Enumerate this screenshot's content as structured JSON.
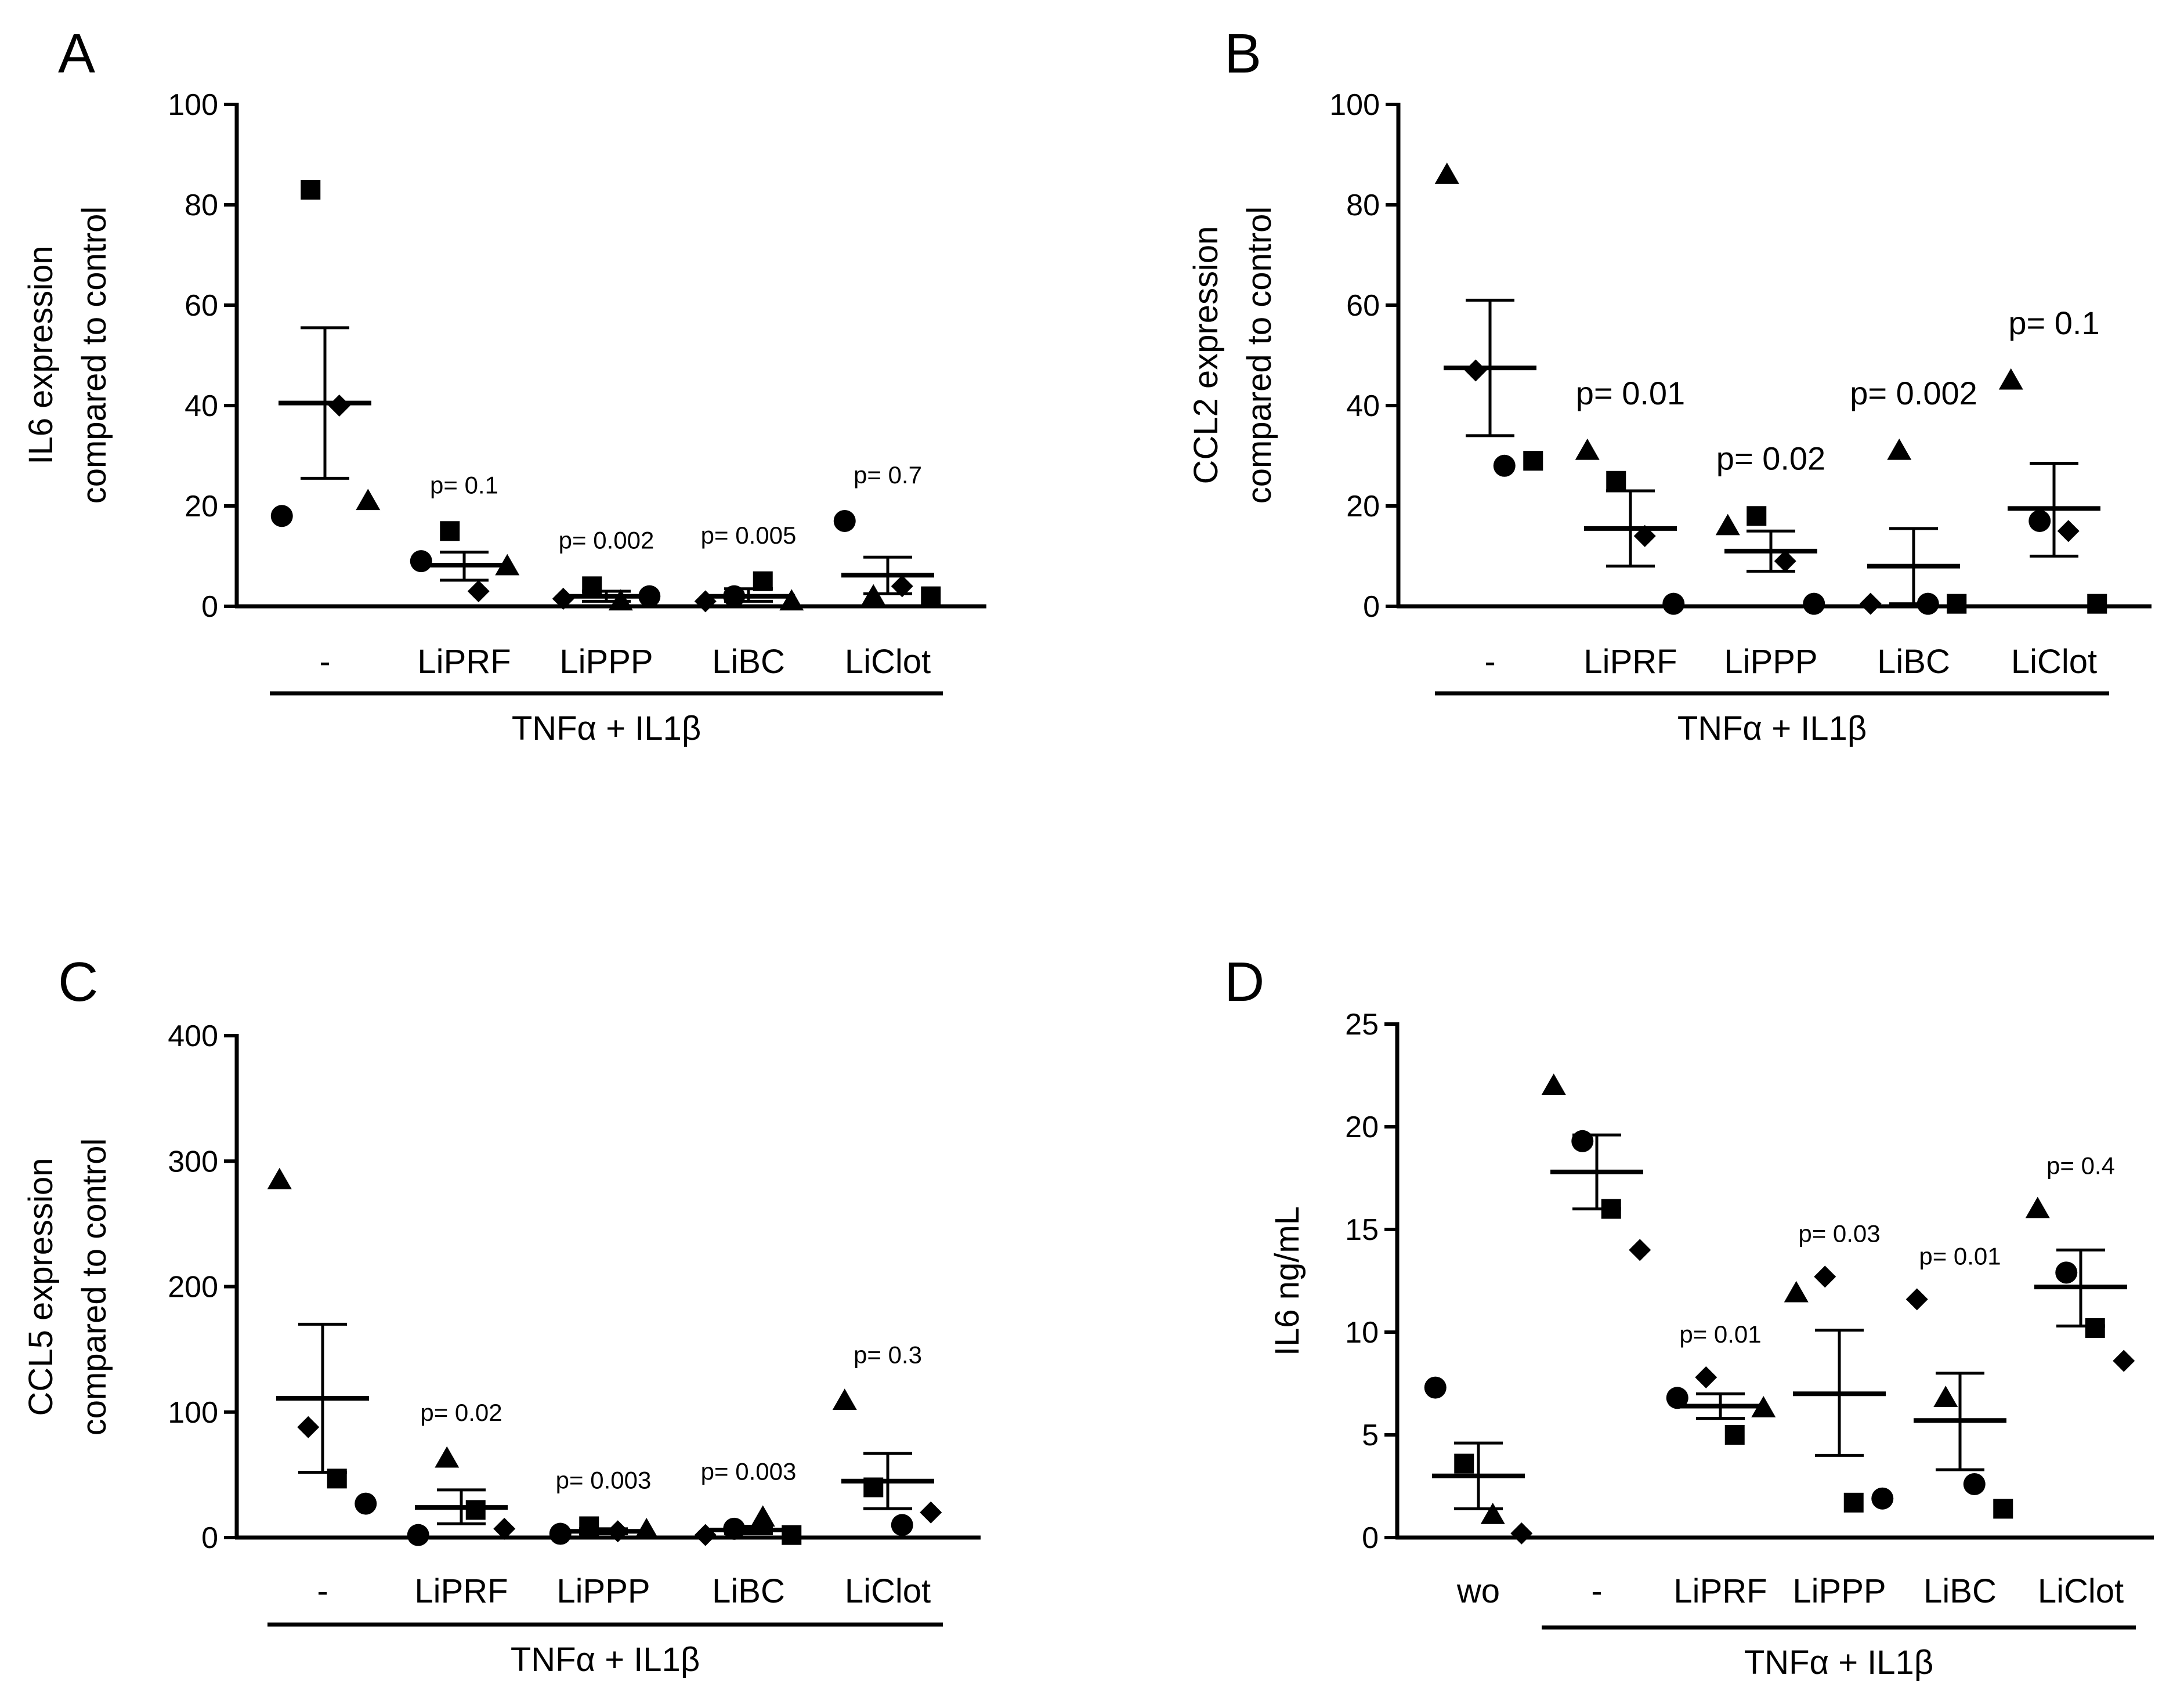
{
  "chart_data": [
    {
      "panel": "A",
      "type": "scatter",
      "ylabel": [
        "IL6 expression",
        "compared to control"
      ],
      "ylim": [
        0,
        100
      ],
      "yticks": [
        0,
        20,
        40,
        60,
        80,
        100
      ],
      "categories": [
        "-",
        "LiPRF",
        "LiPPP",
        "LiBC",
        "LiClot"
      ],
      "group_label": "TNFα + IL1β",
      "group_span": [
        "-",
        "LiClot"
      ],
      "p_font": "small",
      "groups": [
        {
          "category": "-",
          "mean": 40.5,
          "sem_low": 25.5,
          "sem_high": 55.5,
          "p": "",
          "points": [
            {
              "shape": "circle",
              "value": 18
            },
            {
              "shape": "square",
              "value": 83
            },
            {
              "shape": "diamond",
              "value": 40
            },
            {
              "shape": "triangle",
              "value": 21
            }
          ]
        },
        {
          "category": "LiPRF",
          "mean": 8.2,
          "sem_low": 5.2,
          "sem_high": 10.8,
          "p": "p= 0.1",
          "points": [
            {
              "shape": "circle",
              "value": 9
            },
            {
              "shape": "square",
              "value": 15
            },
            {
              "shape": "diamond",
              "value": 3
            },
            {
              "shape": "triangle",
              "value": 8
            }
          ]
        },
        {
          "category": "LiPPP",
          "mean": 2,
          "sem_low": 1,
          "sem_high": 3,
          "p": "p= 0.002",
          "points": [
            {
              "shape": "diamond",
              "value": 1.5
            },
            {
              "shape": "square",
              "value": 4
            },
            {
              "shape": "triangle",
              "value": 1
            },
            {
              "shape": "circle",
              "value": 2
            }
          ]
        },
        {
          "category": "LiBC",
          "mean": 2,
          "sem_low": 1,
          "sem_high": 3.5,
          "p": "p= 0.005",
          "points": [
            {
              "shape": "diamond",
              "value": 1
            },
            {
              "shape": "circle",
              "value": 2
            },
            {
              "shape": "square",
              "value": 5
            },
            {
              "shape": "triangle",
              "value": 1
            }
          ]
        },
        {
          "category": "LiClot",
          "mean": 6.2,
          "sem_low": 2.5,
          "sem_high": 9.8,
          "p": "p= 0.7",
          "points": [
            {
              "shape": "circle",
              "value": 17
            },
            {
              "shape": "triangle",
              "value": 2
            },
            {
              "shape": "diamond",
              "value": 4
            },
            {
              "shape": "square",
              "value": 2
            }
          ]
        }
      ]
    },
    {
      "panel": "B",
      "type": "scatter",
      "ylabel": [
        "CCL2 expression",
        "compared to control"
      ],
      "ylim": [
        0,
        100
      ],
      "yticks": [
        0,
        20,
        40,
        60,
        80,
        100
      ],
      "categories": [
        "-",
        "LiPRF",
        "LiPPP",
        "LiBC",
        "LiClot"
      ],
      "group_label": "TNFα + IL1β",
      "group_span": [
        "-",
        "LiClot"
      ],
      "p_font": "large",
      "groups": [
        {
          "category": "-",
          "mean": 47.5,
          "sem_low": 34,
          "sem_high": 61,
          "p": "",
          "points": [
            {
              "shape": "triangle",
              "value": 86
            },
            {
              "shape": "diamond",
              "value": 47
            },
            {
              "shape": "circle",
              "value": 28
            },
            {
              "shape": "square",
              "value": 29
            }
          ]
        },
        {
          "category": "LiPRF",
          "mean": 15.5,
          "sem_low": 8,
          "sem_high": 23,
          "p": "p= 0.01",
          "points": [
            {
              "shape": "triangle",
              "value": 31
            },
            {
              "shape": "square",
              "value": 25
            },
            {
              "shape": "diamond",
              "value": 14
            },
            {
              "shape": "circle",
              "value": 0.5
            }
          ]
        },
        {
          "category": "LiPPP",
          "mean": 11,
          "sem_low": 7,
          "sem_high": 15,
          "p": "p= 0.02",
          "points": [
            {
              "shape": "triangle",
              "value": 16
            },
            {
              "shape": "square",
              "value": 18
            },
            {
              "shape": "diamond",
              "value": 9
            },
            {
              "shape": "circle",
              "value": 0.5
            }
          ]
        },
        {
          "category": "LiBC",
          "mean": 8,
          "sem_low": 0.5,
          "sem_high": 15.5,
          "p": "p= 0.002",
          "points": [
            {
              "shape": "diamond",
              "value": 0.5
            },
            {
              "shape": "triangle",
              "value": 31
            },
            {
              "shape": "circle",
              "value": 0.5
            },
            {
              "shape": "square",
              "value": 0.5
            }
          ]
        },
        {
          "category": "LiClot",
          "mean": 19.5,
          "sem_low": 10,
          "sem_high": 28.5,
          "p": "p= 0.1",
          "points": [
            {
              "shape": "triangle",
              "value": 45
            },
            {
              "shape": "circle",
              "value": 17
            },
            {
              "shape": "diamond",
              "value": 15
            },
            {
              "shape": "square",
              "value": 0.5
            }
          ]
        }
      ]
    },
    {
      "panel": "C",
      "type": "scatter",
      "ylabel": [
        "CCL5 expression",
        "compared to control"
      ],
      "ylim": [
        0,
        400
      ],
      "yticks": [
        0,
        100,
        200,
        300,
        400
      ],
      "categories": [
        "-",
        "LiPRF",
        "LiPPP",
        "LiBC",
        "LiClot"
      ],
      "group_label": "TNFα + IL1β",
      "group_span": [
        "-",
        "LiClot"
      ],
      "p_font": "small",
      "groups": [
        {
          "category": "-",
          "mean": 111,
          "sem_low": 52,
          "sem_high": 170,
          "p": "",
          "points": [
            {
              "shape": "triangle",
              "value": 285
            },
            {
              "shape": "diamond",
              "value": 88
            },
            {
              "shape": "square",
              "value": 47
            },
            {
              "shape": "circle",
              "value": 27
            }
          ]
        },
        {
          "category": "LiPRF",
          "mean": 24,
          "sem_low": 11,
          "sem_high": 38,
          "p": "p= 0.02",
          "points": [
            {
              "shape": "circle",
              "value": 2
            },
            {
              "shape": "triangle",
              "value": 63
            },
            {
              "shape": "square",
              "value": 22
            },
            {
              "shape": "diamond",
              "value": 7
            }
          ]
        },
        {
          "category": "LiPPP",
          "mean": 5,
          "sem_low": 3,
          "sem_high": 7,
          "p": "p= 0.003",
          "points": [
            {
              "shape": "circle",
              "value": 3
            },
            {
              "shape": "square",
              "value": 9
            },
            {
              "shape": "diamond",
              "value": 5
            },
            {
              "shape": "triangle",
              "value": 6
            }
          ]
        },
        {
          "category": "LiBC",
          "mean": 6,
          "sem_low": 3,
          "sem_high": 9,
          "p": "p= 0.003",
          "points": [
            {
              "shape": "diamond",
              "value": 2
            },
            {
              "shape": "circle",
              "value": 7
            },
            {
              "shape": "triangle",
              "value": 16
            },
            {
              "shape": "square",
              "value": 2
            }
          ]
        },
        {
          "category": "LiClot",
          "mean": 45,
          "sem_low": 23,
          "sem_high": 67,
          "p": "p= 0.3",
          "points": [
            {
              "shape": "triangle",
              "value": 109
            },
            {
              "shape": "square",
              "value": 40
            },
            {
              "shape": "circle",
              "value": 10
            },
            {
              "shape": "diamond",
              "value": 20
            }
          ]
        }
      ]
    },
    {
      "panel": "D",
      "type": "scatter",
      "ylabel": [
        "IL6 ng/mL"
      ],
      "ylim": [
        0,
        25
      ],
      "yticks": [
        0,
        5,
        10,
        15,
        20,
        25
      ],
      "categories": [
        "wo",
        "-",
        "LiPRF",
        "LiPPP",
        "LiBC",
        "LiClot"
      ],
      "group_label": "TNFα + IL1β",
      "group_span": [
        "-",
        "LiClot"
      ],
      "p_font": "small",
      "groups": [
        {
          "category": "wo",
          "mean": 3.0,
          "sem_low": 1.4,
          "sem_high": 4.6,
          "p": "",
          "points": [
            {
              "shape": "circle",
              "value": 7.3
            },
            {
              "shape": "square",
              "value": 3.6
            },
            {
              "shape": "triangle",
              "value": 1.1
            },
            {
              "shape": "diamond",
              "value": 0.2
            }
          ]
        },
        {
          "category": "-",
          "mean": 17.8,
          "sem_low": 16.0,
          "sem_high": 19.6,
          "p": "",
          "points": [
            {
              "shape": "triangle",
              "value": 22
            },
            {
              "shape": "circle",
              "value": 19.3
            },
            {
              "shape": "square",
              "value": 16.0
            },
            {
              "shape": "diamond",
              "value": 14
            }
          ]
        },
        {
          "category": "LiPRF",
          "mean": 6.4,
          "sem_low": 5.8,
          "sem_high": 7.0,
          "p": "p= 0.01",
          "points": [
            {
              "shape": "circle",
              "value": 6.8
            },
            {
              "shape": "diamond",
              "value": 7.8
            },
            {
              "shape": "square",
              "value": 5.0
            },
            {
              "shape": "triangle",
              "value": 6.3
            }
          ]
        },
        {
          "category": "LiPPP",
          "mean": 7.0,
          "sem_low": 4.0,
          "sem_high": 10.1,
          "p": "p= 0.03",
          "points": [
            {
              "shape": "triangle",
              "value": 11.9
            },
            {
              "shape": "diamond",
              "value": 12.7
            },
            {
              "shape": "square",
              "value": 1.7
            },
            {
              "shape": "circle",
              "value": 1.9
            }
          ]
        },
        {
          "category": "LiBC",
          "mean": 5.7,
          "sem_low": 3.3,
          "sem_high": 8.0,
          "p": "p= 0.01",
          "points": [
            {
              "shape": "diamond",
              "value": 11.6
            },
            {
              "shape": "triangle",
              "value": 6.8
            },
            {
              "shape": "circle",
              "value": 2.6
            },
            {
              "shape": "square",
              "value": 1.4
            }
          ]
        },
        {
          "category": "LiClot",
          "mean": 12.2,
          "sem_low": 10.3,
          "sem_high": 14.0,
          "p": "p= 0.4",
          "points": [
            {
              "shape": "triangle",
              "value": 16.0
            },
            {
              "shape": "circle",
              "value": 12.9
            },
            {
              "shape": "square",
              "value": 10.2
            },
            {
              "shape": "diamond",
              "value": 8.6
            }
          ]
        }
      ]
    }
  ]
}
